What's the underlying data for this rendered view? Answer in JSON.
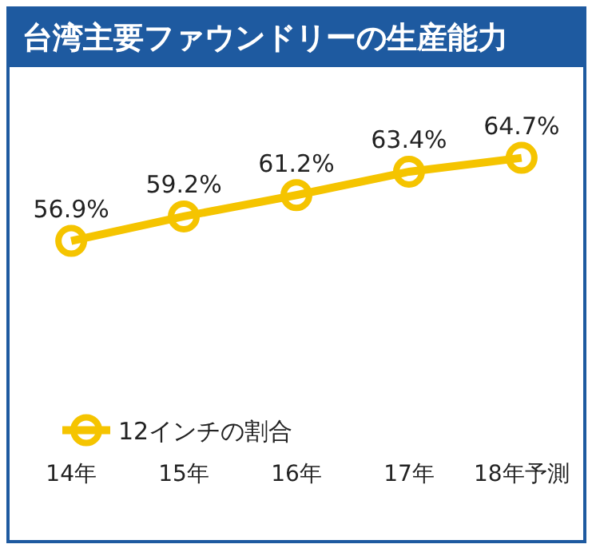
{
  "chart_data": {
    "type": "line",
    "title": "台湾主要ファウンドリーの生産能力",
    "categories": [
      "14年",
      "15年",
      "16年",
      "17年",
      "18年予測"
    ],
    "series": [
      {
        "name": "12インチの割合",
        "color": "#f5c400",
        "values": [
          56.9,
          59.2,
          61.2,
          63.4,
          64.7
        ],
        "value_labels": [
          "56.9%",
          "59.2%",
          "61.2%",
          "63.4%",
          "64.7%"
        ]
      }
    ],
    "marker": "circle",
    "line_style": "solid",
    "legend": "bottom left",
    "grid": false
  }
}
